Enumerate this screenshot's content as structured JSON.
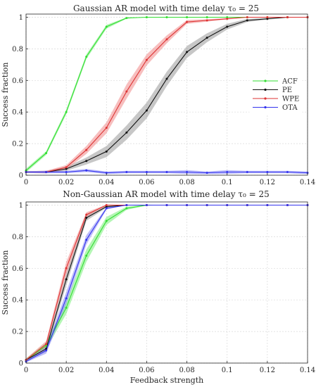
{
  "chart_data": [
    {
      "type": "line",
      "title": "Gaussian AR model with time delay τ₀ = 25",
      "xlabel": "",
      "ylabel": "Success fraction",
      "xlim": [
        0,
        0.14
      ],
      "ylim": [
        0,
        1.02
      ],
      "xticks": [
        0,
        0.02,
        0.04,
        0.06,
        0.08,
        0.1,
        0.12,
        0.14
      ],
      "xtick_labels": [
        "0",
        "0.02",
        "0.04",
        "0.06",
        "0.08",
        "0.1",
        "0.12",
        "0.14"
      ],
      "yticks": [
        0,
        0.2,
        0.4,
        0.6,
        0.8,
        1
      ],
      "ytick_labels": [
        "0",
        "0.2",
        "0.4",
        "0.6",
        "0.8",
        "1"
      ],
      "grid": true,
      "legend": "right",
      "x": [
        0,
        0.01,
        0.02,
        0.03,
        0.04,
        0.05,
        0.06,
        0.07,
        0.08,
        0.09,
        0.1,
        0.11,
        0.12,
        0.13,
        0.14
      ],
      "series": [
        {
          "name": "ACF",
          "color": "#33dd33",
          "band_color": "#77ee77",
          "values": [
            0.03,
            0.14,
            0.4,
            0.75,
            0.94,
            0.995,
            1.0,
            1.0,
            1.0,
            1.0,
            1.0,
            1.0,
            1.0,
            1.0,
            1.0
          ],
          "band": [
            0.012,
            0.012,
            0.015,
            0.015,
            0.012,
            0.004,
            0,
            0,
            0,
            0,
            0,
            0,
            0,
            0,
            0
          ]
        },
        {
          "name": "PE",
          "color": "#111111",
          "band_color": "#999999",
          "values": [
            0.02,
            0.02,
            0.04,
            0.09,
            0.15,
            0.27,
            0.41,
            0.61,
            0.78,
            0.87,
            0.94,
            0.98,
            0.99,
            1.0,
            1.0
          ],
          "band": [
            0.006,
            0.008,
            0.012,
            0.022,
            0.035,
            0.045,
            0.05,
            0.045,
            0.038,
            0.028,
            0.018,
            0.01,
            0.005,
            0.002,
            0
          ]
        },
        {
          "name": "WPE",
          "color": "#dd3333",
          "band_color": "#f08888",
          "values": [
            0.02,
            0.02,
            0.05,
            0.16,
            0.3,
            0.53,
            0.73,
            0.86,
            0.97,
            0.98,
            0.99,
            1.0,
            1.0,
            1.0,
            1.0
          ],
          "band": [
            0.006,
            0.008,
            0.014,
            0.025,
            0.035,
            0.045,
            0.035,
            0.025,
            0.012,
            0.008,
            0.004,
            0,
            0,
            0,
            0
          ]
        },
        {
          "name": "OTA",
          "color": "#3333ee",
          "band_color": "#8888f5",
          "values": [
            0.02,
            0.02,
            0.02,
            0.03,
            0.015,
            0.02,
            0.02,
            0.02,
            0.02,
            0.015,
            0.02,
            0.02,
            0.02,
            0.02,
            0.015
          ],
          "band": [
            0.006,
            0.008,
            0.008,
            0.01,
            0.008,
            0.008,
            0.008,
            0.008,
            0.012,
            0.008,
            0.012,
            0.008,
            0.008,
            0.008,
            0.008
          ]
        }
      ]
    },
    {
      "type": "line",
      "title": "Non-Gaussian AR model with time delay τ₀ = 25",
      "xlabel": "Feedback strength",
      "ylabel": "Success fraction",
      "xlim": [
        0,
        0.14
      ],
      "ylim": [
        0,
        1.02
      ],
      "xticks": [
        0,
        0.02,
        0.04,
        0.06,
        0.08,
        0.1,
        0.12,
        0.14
      ],
      "xtick_labels": [
        "0",
        "0.02",
        "0.04",
        "0.06",
        "0.08",
        "0.1",
        "0.12",
        "0.14"
      ],
      "yticks": [
        0,
        0.2,
        0.4,
        0.6,
        0.8,
        1
      ],
      "ytick_labels": [
        "0",
        "0.2",
        "0.4",
        "0.6",
        "0.8",
        "1"
      ],
      "grid": true,
      "legend": "none",
      "x": [
        0,
        0.01,
        0.02,
        0.03,
        0.04,
        0.05,
        0.06,
        0.07,
        0.08,
        0.09,
        0.1,
        0.11,
        0.12,
        0.13,
        0.14
      ],
      "series": [
        {
          "name": "ACF",
          "color": "#33dd33",
          "band_color": "#77ee77",
          "values": [
            0.02,
            0.11,
            0.35,
            0.68,
            0.9,
            0.98,
            1.0,
            1.0,
            1.0,
            1.0,
            1.0,
            1.0,
            1.0,
            1.0,
            1.0
          ],
          "band": [
            0.01,
            0.02,
            0.04,
            0.04,
            0.025,
            0.01,
            0.003,
            0,
            0,
            0,
            0,
            0,
            0,
            0,
            0
          ]
        },
        {
          "name": "PE",
          "color": "#111111",
          "band_color": "#999999",
          "values": [
            0.02,
            0.09,
            0.53,
            0.92,
            0.99,
            1.0,
            1.0,
            1.0,
            1.0,
            1.0,
            1.0,
            1.0,
            1.0,
            1.0,
            1.0
          ],
          "band": [
            0.008,
            0.02,
            0.04,
            0.02,
            0.006,
            0,
            0,
            0,
            0,
            0,
            0,
            0,
            0,
            0,
            0
          ]
        },
        {
          "name": "WPE",
          "color": "#dd3333",
          "band_color": "#f08888",
          "values": [
            0.02,
            0.12,
            0.6,
            0.94,
            1.0,
            1.0,
            1.0,
            1.0,
            1.0,
            1.0,
            1.0,
            1.0,
            1.0,
            1.0,
            1.0
          ],
          "band": [
            0.008,
            0.02,
            0.04,
            0.015,
            0.003,
            0,
            0,
            0,
            0,
            0,
            0,
            0,
            0,
            0,
            0
          ]
        },
        {
          "name": "OTA",
          "color": "#3333ee",
          "band_color": "#8888f5",
          "values": [
            0.01,
            0.08,
            0.41,
            0.78,
            0.98,
            1.0,
            1.0,
            1.0,
            1.0,
            1.0,
            1.0,
            1.0,
            1.0,
            1.0,
            1.0
          ],
          "band": [
            0.006,
            0.02,
            0.04,
            0.03,
            0.008,
            0,
            0,
            0,
            0,
            0,
            0,
            0,
            0,
            0,
            0
          ]
        }
      ]
    }
  ]
}
